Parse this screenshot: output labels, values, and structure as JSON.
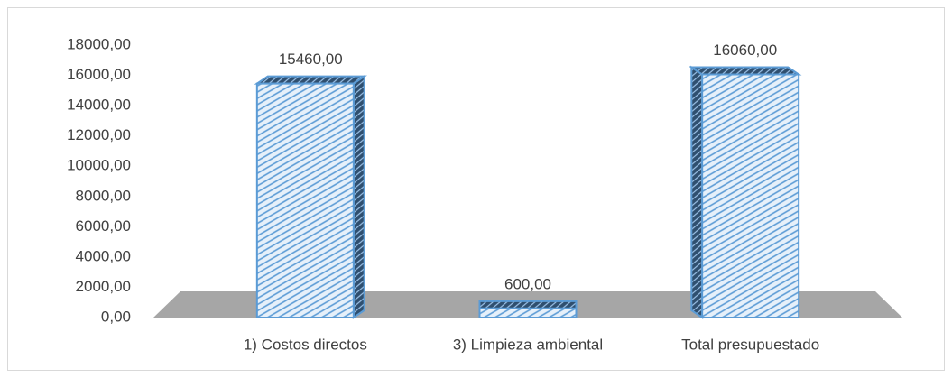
{
  "chart_data": {
    "type": "bar3d",
    "categories": [
      "1) Costos directos",
      "3) Limpieza ambiental",
      "Total presupuestado"
    ],
    "values": [
      15460,
      600,
      16060
    ],
    "value_labels": [
      "15460,00",
      "600,00",
      "16060,00"
    ],
    "color": "#5b9bd5",
    "ylim": [
      0,
      18000
    ],
    "yticks": [
      {
        "value": 0,
        "label": "0,00"
      },
      {
        "value": 2000,
        "label": "2000,00"
      },
      {
        "value": 4000,
        "label": "4000,00"
      },
      {
        "value": 6000,
        "label": "6000,00"
      },
      {
        "value": 8000,
        "label": "8000,00"
      },
      {
        "value": 10000,
        "label": "10000,00"
      },
      {
        "value": 12000,
        "label": "12000,00"
      },
      {
        "value": 14000,
        "label": "14000,00"
      },
      {
        "value": 16000,
        "label": "16000,00"
      },
      {
        "value": 18000,
        "label": "18000,00"
      }
    ]
  }
}
